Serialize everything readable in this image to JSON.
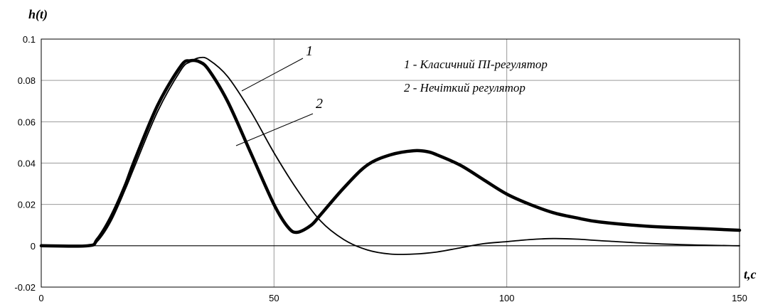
{
  "chart_data": {
    "type": "line",
    "ylabel": "h(t)",
    "xlabel": "t,c",
    "xlim": [
      0,
      150
    ],
    "ylim": [
      -0.02,
      0.1
    ],
    "xticks": [
      0,
      50,
      100,
      150
    ],
    "yticks": [
      -0.02,
      0,
      0.02,
      0.04,
      0.06,
      0.08,
      0.1
    ],
    "xtick_labels": [
      "0",
      "50",
      "100",
      "150"
    ],
    "ytick_labels": [
      "-0.02",
      "0",
      "0.02",
      "0.04",
      "0.06",
      "0.08",
      "0.1"
    ],
    "grid": true,
    "legend_position": "top-right",
    "legend": [
      "1 - Класичний ПІ-регулятор",
      "2 - Нечіткий регулятор"
    ],
    "series": [
      {
        "label": "1",
        "line_style": "thin",
        "x": [
          0,
          10,
          12,
          15,
          18,
          20,
          25,
          30,
          32,
          34,
          36,
          40,
          45,
          50,
          55,
          60,
          65,
          70,
          75,
          80,
          85,
          90,
          95,
          100,
          105,
          110,
          115,
          120,
          130,
          140,
          150
        ],
        "y": [
          0,
          0,
          0.002,
          0.012,
          0.027,
          0.038,
          0.065,
          0.085,
          0.089,
          0.091,
          0.09,
          0.082,
          0.065,
          0.045,
          0.027,
          0.012,
          0.003,
          -0.002,
          -0.004,
          -0.004,
          -0.003,
          -0.001,
          0.001,
          0.002,
          0.003,
          0.0035,
          0.0032,
          0.0025,
          0.0012,
          0.0004,
          0
        ]
      },
      {
        "label": "2",
        "line_style": "thick",
        "x": [
          0,
          10,
          12,
          15,
          18,
          20,
          25,
          30,
          32,
          34,
          36,
          40,
          45,
          50,
          53,
          55,
          58,
          60,
          65,
          70,
          75,
          80,
          83,
          85,
          90,
          95,
          100,
          105,
          110,
          115,
          120,
          130,
          140,
          150
        ],
        "y": [
          0,
          0,
          0.003,
          0.014,
          0.029,
          0.041,
          0.068,
          0.087,
          0.0895,
          0.089,
          0.085,
          0.07,
          0.045,
          0.02,
          0.009,
          0.0065,
          0.01,
          0.015,
          0.028,
          0.039,
          0.044,
          0.046,
          0.0455,
          0.044,
          0.039,
          0.032,
          0.025,
          0.02,
          0.016,
          0.0135,
          0.0115,
          0.0095,
          0.0085,
          0.0075
        ]
      }
    ]
  }
}
